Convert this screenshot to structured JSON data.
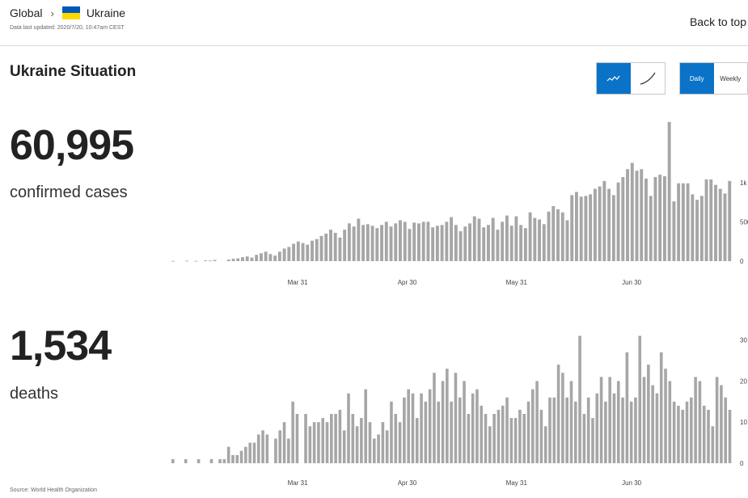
{
  "breadcrumb": {
    "global": "Global",
    "separator": "›",
    "country": "Ukraine"
  },
  "data_updated": "Data last updated: 2020/7/20, 10:47am CEST",
  "back_to_top": "Back to top",
  "situation_title": "Ukraine Situation",
  "view_toggle": {
    "bars_icon": "sparkline-bars-icon",
    "curve_icon": "curve-line-icon"
  },
  "period_toggle": {
    "daily": "Daily",
    "weekly": "Weekly",
    "selected": "Daily"
  },
  "accent_color": "#0a73c7",
  "bar_color": "#a6a6a6",
  "cases": {
    "total": "60,995",
    "label": "confirmed cases"
  },
  "deaths": {
    "total": "1,534",
    "label": "deaths"
  },
  "source": "Source: World Health Organization",
  "chart_data": [
    {
      "type": "bar",
      "series": [
        {
          "name": "confirmed cases",
          "values": [
            3,
            0,
            0,
            5,
            0,
            3,
            0,
            10,
            7,
            15,
            0,
            0,
            20,
            30,
            35,
            50,
            60,
            45,
            80,
            100,
            120,
            90,
            70,
            120,
            160,
            180,
            220,
            250,
            230,
            210,
            260,
            280,
            320,
            350,
            400,
            360,
            300,
            400,
            480,
            440,
            540,
            460,
            470,
            450,
            420,
            460,
            500,
            440,
            480,
            520,
            500,
            410,
            490,
            480,
            500,
            500,
            430,
            450,
            460,
            500,
            560,
            460,
            380,
            440,
            480,
            570,
            540,
            430,
            460,
            550,
            400,
            500,
            580,
            450,
            570,
            460,
            420,
            620,
            550,
            530,
            470,
            630,
            700,
            660,
            620,
            520,
            840,
            880,
            820,
            830,
            850,
            920,
            950,
            1020,
            920,
            840,
            1000,
            1070,
            1170,
            1250,
            1150,
            1170,
            1050,
            830,
            1070,
            1100,
            1080,
            1770,
            760,
            990,
            990,
            990,
            850,
            780,
            830,
            1040,
            1040,
            970,
            920,
            860,
            1020
          ]
        }
      ],
      "x_ticks": [
        "Mar 31",
        "Apr 30",
        "May 31",
        "Jun 30"
      ],
      "y_ticks": [
        "0",
        "500",
        "1k"
      ],
      "ylim": [
        0,
        1800
      ]
    },
    {
      "type": "bar",
      "series": [
        {
          "name": "deaths",
          "values": [
            1,
            0,
            0,
            1,
            0,
            0,
            1,
            0,
            0,
            1,
            0,
            1,
            1,
            4,
            2,
            2,
            3,
            4,
            5,
            5,
            7,
            8,
            7,
            0,
            6,
            8,
            10,
            6,
            15,
            12,
            0,
            12,
            9,
            10,
            10,
            11,
            10,
            12,
            12,
            13,
            8,
            17,
            12,
            9,
            11,
            18,
            10,
            6,
            7,
            10,
            8,
            15,
            12,
            10,
            16,
            18,
            17,
            11,
            17,
            15,
            18,
            22,
            15,
            20,
            23,
            15,
            22,
            16,
            20,
            12,
            17,
            18,
            14,
            12,
            9,
            12,
            13,
            14,
            16,
            11,
            11,
            13,
            12,
            15,
            18,
            20,
            13,
            9,
            16,
            16,
            24,
            22,
            16,
            20,
            15,
            31,
            12,
            16,
            11,
            17,
            21,
            15,
            21,
            17,
            20,
            16,
            27,
            15,
            16,
            31,
            21,
            24,
            19,
            17,
            27,
            23,
            20,
            15,
            14,
            13,
            15,
            16,
            21,
            20,
            14,
            13,
            9,
            21,
            19,
            16,
            13
          ]
        }
      ],
      "x_ticks": [
        "Mar 31",
        "Apr 30",
        "May 31",
        "Jun 30"
      ],
      "y_ticks": [
        "0",
        "10",
        "20",
        "30"
      ],
      "ylim": [
        0,
        36
      ]
    }
  ]
}
